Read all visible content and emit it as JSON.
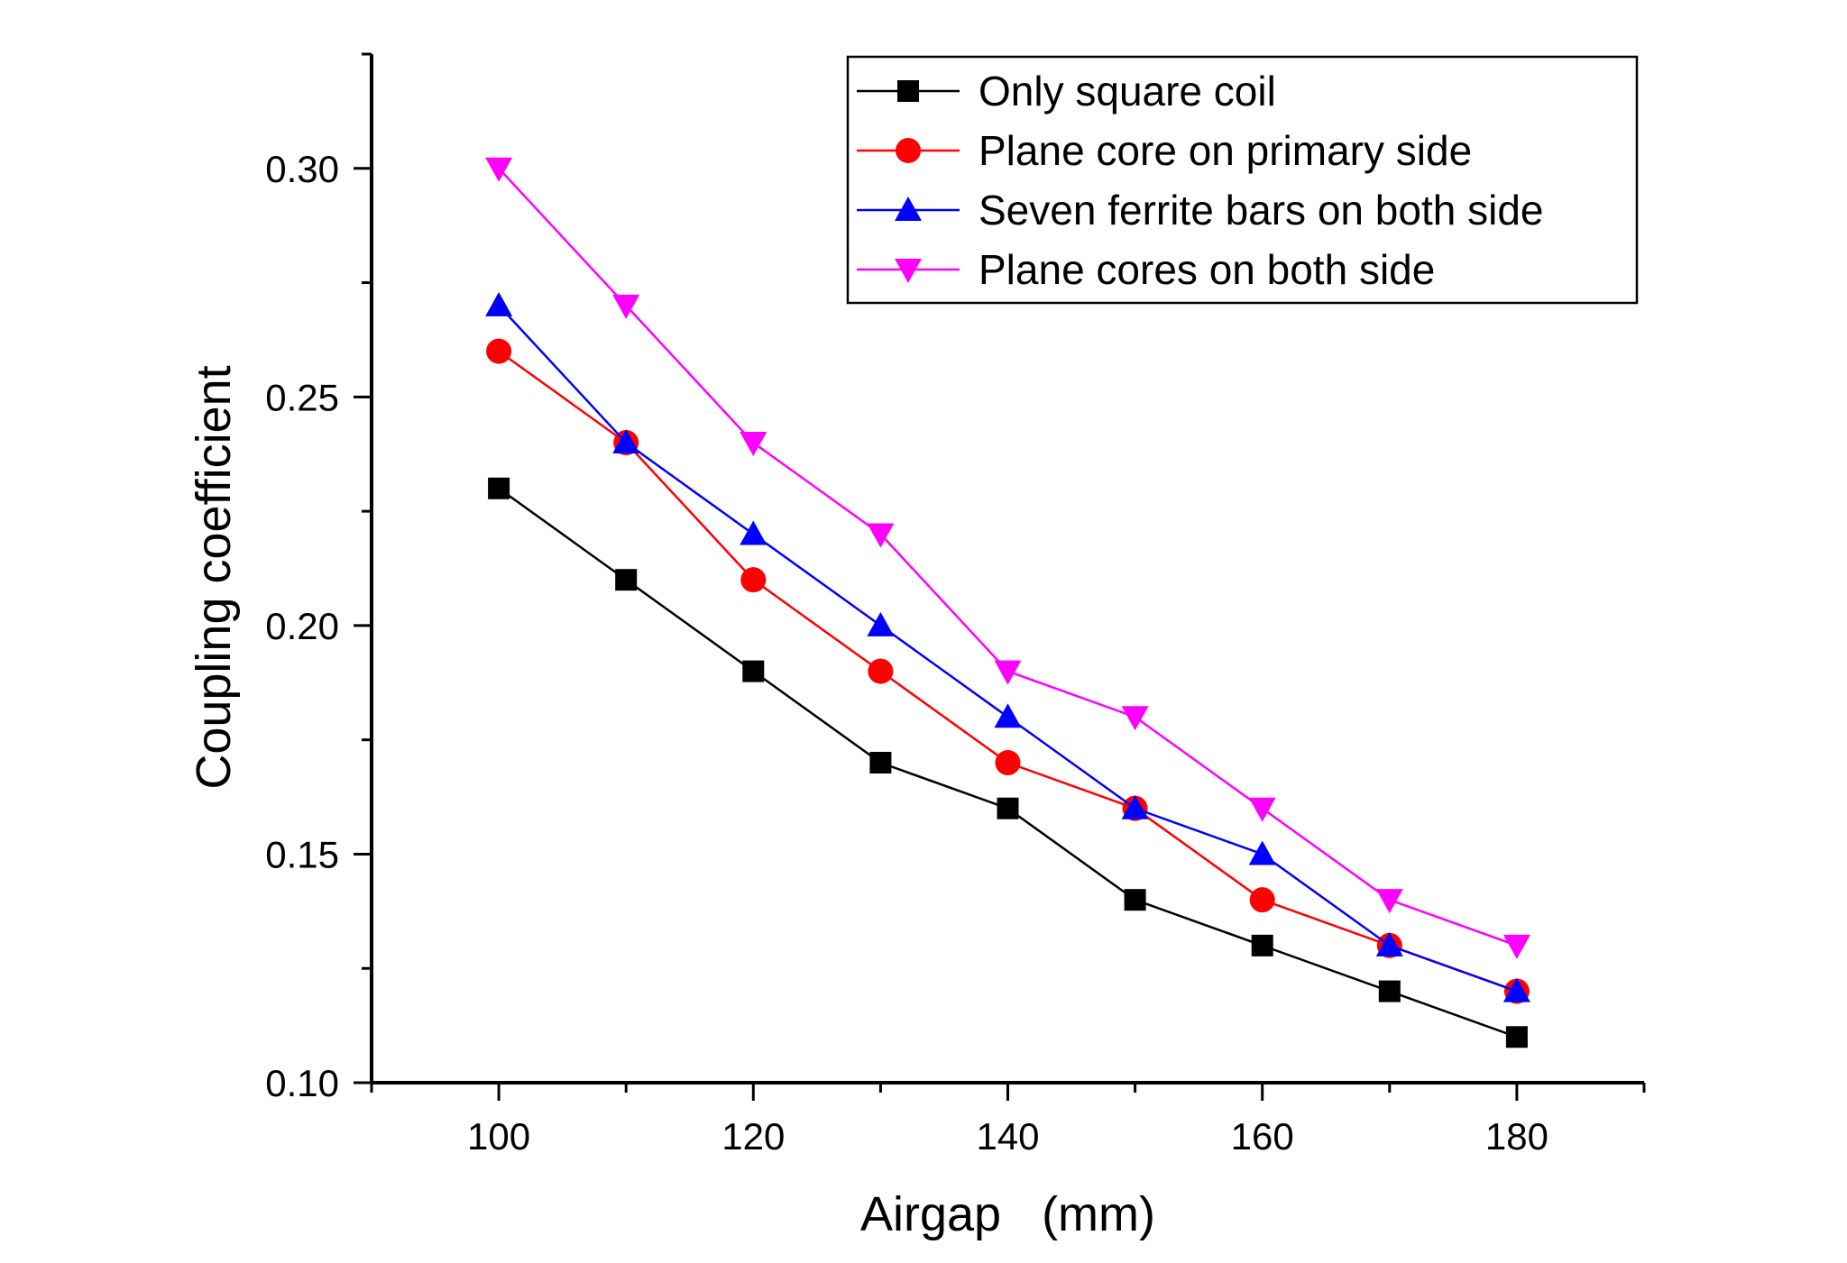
{
  "chart_data": {
    "type": "line",
    "title": "",
    "xlabel": "Airgap   (mm)",
    "ylabel": "Coupling coefficient",
    "xlim": [
      90,
      190
    ],
    "ylim": [
      0.1,
      0.325
    ],
    "x": [
      100,
      110,
      120,
      130,
      140,
      150,
      160,
      170,
      180
    ],
    "xticks": [
      100,
      120,
      140,
      160,
      180
    ],
    "xtick_labels": [
      "100",
      "120",
      "140",
      "160",
      "180"
    ],
    "yticks": [
      0.1,
      0.15,
      0.2,
      0.25,
      0.3
    ],
    "ytick_labels": [
      "0.10",
      "0.15",
      "0.20",
      "0.25",
      "0.30"
    ],
    "grid": false,
    "legend_position": "top-right",
    "series": [
      {
        "name": "Only square coil",
        "color": "#000000",
        "marker": "square",
        "values": [
          0.23,
          0.21,
          0.19,
          0.17,
          0.16,
          0.14,
          0.13,
          0.12,
          0.11
        ]
      },
      {
        "name": "Plane core on primary side",
        "color": "#ff0000",
        "marker": "circle",
        "values": [
          0.26,
          0.24,
          0.21,
          0.19,
          0.17,
          0.16,
          0.14,
          0.13,
          0.12
        ]
      },
      {
        "name": "Seven ferrite bars on both side",
        "color": "#0000ff",
        "marker": "triangle-up",
        "values": [
          0.27,
          0.24,
          0.22,
          0.2,
          0.18,
          0.16,
          0.15,
          0.13,
          0.12
        ]
      },
      {
        "name": "Plane cores on both side",
        "color": "#ff00ff",
        "marker": "triangle-down",
        "values": [
          0.3,
          0.27,
          0.24,
          0.22,
          0.19,
          0.18,
          0.16,
          0.14,
          0.13
        ]
      }
    ]
  }
}
